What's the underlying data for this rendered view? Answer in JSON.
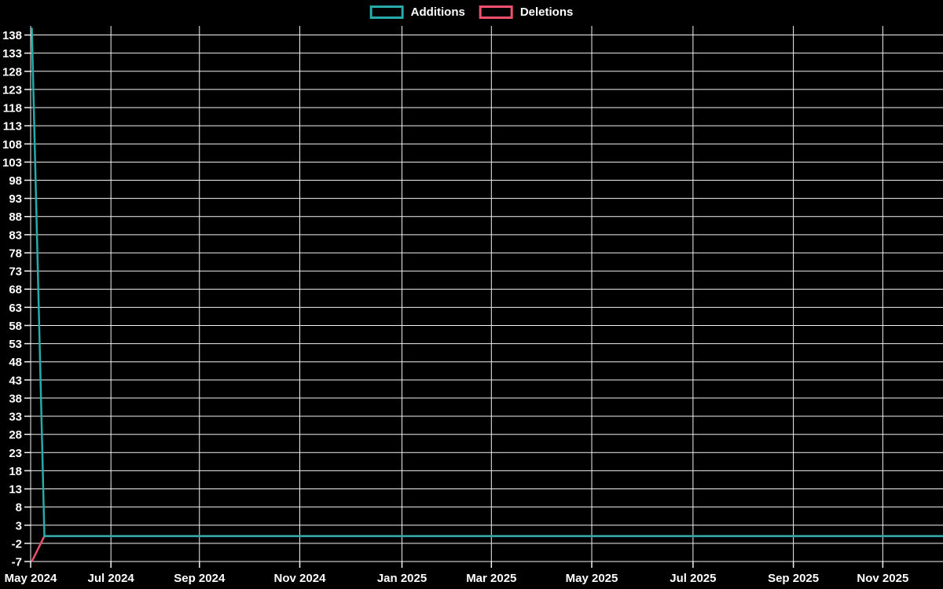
{
  "page": {
    "background_color": "#000000"
  },
  "legend": {
    "items": [
      {
        "label": "Additions",
        "color": "#26aaaa"
      },
      {
        "label": "Deletions",
        "color": "#ef506e"
      }
    ]
  },
  "chart_data": {
    "type": "line",
    "title": "",
    "xlabel": "",
    "ylabel": "",
    "legend_position": "top-center",
    "grid": true,
    "background_color": "#000000",
    "grid_color": "#f2f2f2",
    "text_color": "#ffffff",
    "ylim": [
      -7,
      140.5
    ],
    "y_ticks": [
      -7,
      -2,
      3,
      8,
      13,
      18,
      23,
      28,
      33,
      38,
      43,
      48,
      53,
      58,
      63,
      68,
      73,
      78,
      83,
      88,
      93,
      98,
      103,
      108,
      113,
      118,
      123,
      128,
      133,
      138
    ],
    "x_ticks": [
      {
        "label": "May 2024",
        "f": 0.0
      },
      {
        "label": "Jul 2024",
        "f": 0.088
      },
      {
        "label": "Sep 2024",
        "f": 0.185
      },
      {
        "label": "Nov 2024",
        "f": 0.295
      },
      {
        "label": "Jan 2025",
        "f": 0.407
      },
      {
        "label": "Mar 2025",
        "f": 0.505
      },
      {
        "label": "May 2025",
        "f": 0.615
      },
      {
        "label": "Jul 2025",
        "f": 0.726
      },
      {
        "label": "Sep 2025",
        "f": 0.836
      },
      {
        "label": "Nov 2025",
        "f": 0.934
      }
    ],
    "series": [
      {
        "name": "Deletions",
        "color": "#ef506e",
        "points": [
          {
            "f": 0.0013,
            "v": -7
          },
          {
            "f": 0.0151,
            "v": 0
          },
          {
            "f": 1.0,
            "v": 0
          }
        ]
      },
      {
        "name": "Additions",
        "color": "#26aaaa",
        "points": [
          {
            "f": 0.0013,
            "v": 140
          },
          {
            "f": 0.0151,
            "v": 0
          },
          {
            "f": 1.0,
            "v": 0
          }
        ]
      }
    ]
  }
}
